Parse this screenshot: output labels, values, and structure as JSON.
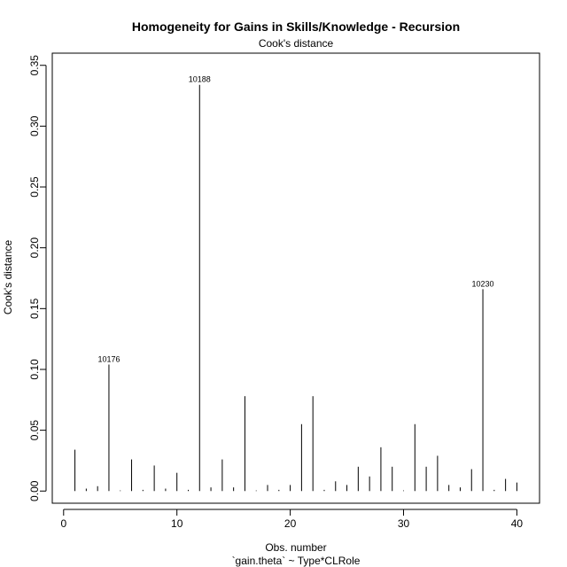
{
  "chart_data": {
    "type": "bar",
    "title": "Homogeneity for Gains in Skills/Knowledge - Recursion",
    "subtitle": "Cook's distance",
    "xlabel": "Obs. number",
    "xlabel_sub": "`gain.theta` ~ Type*CLRole",
    "ylabel": "Cook's distance",
    "xlim": [
      -1,
      42
    ],
    "ylim": [
      -0.01,
      0.36
    ],
    "x_ticks": [
      0,
      10,
      20,
      30,
      40
    ],
    "y_ticks": [
      "0.00",
      "0.05",
      "0.10",
      "0.15",
      "0.20",
      "0.25",
      "0.30",
      "0.35"
    ],
    "grid": false,
    "x": [
      1,
      2,
      3,
      4,
      5,
      6,
      7,
      8,
      9,
      10,
      11,
      12,
      13,
      14,
      15,
      16,
      17,
      18,
      19,
      20,
      21,
      22,
      23,
      24,
      25,
      26,
      27,
      28,
      29,
      30,
      31,
      32,
      33,
      34,
      35,
      36,
      37,
      38,
      39,
      40
    ],
    "values": [
      0.034,
      0.002,
      0.004,
      0.104,
      0.0005,
      0.026,
      0.001,
      0.021,
      0.002,
      0.015,
      0.001,
      0.334,
      0.003,
      0.026,
      0.003,
      0.078,
      0.0005,
      0.005,
      0.001,
      0.005,
      0.055,
      0.078,
      0.001,
      0.008,
      0.005,
      0.02,
      0.012,
      0.036,
      0.02,
      0.0005,
      0.055,
      0.02,
      0.029,
      0.005,
      0.003,
      0.018,
      0.166,
      0.001,
      0.01,
      0.007
    ],
    "labels": [
      {
        "x": 4,
        "text": "10176"
      },
      {
        "x": 12,
        "text": "10188"
      },
      {
        "x": 37,
        "text": "10230"
      }
    ]
  }
}
